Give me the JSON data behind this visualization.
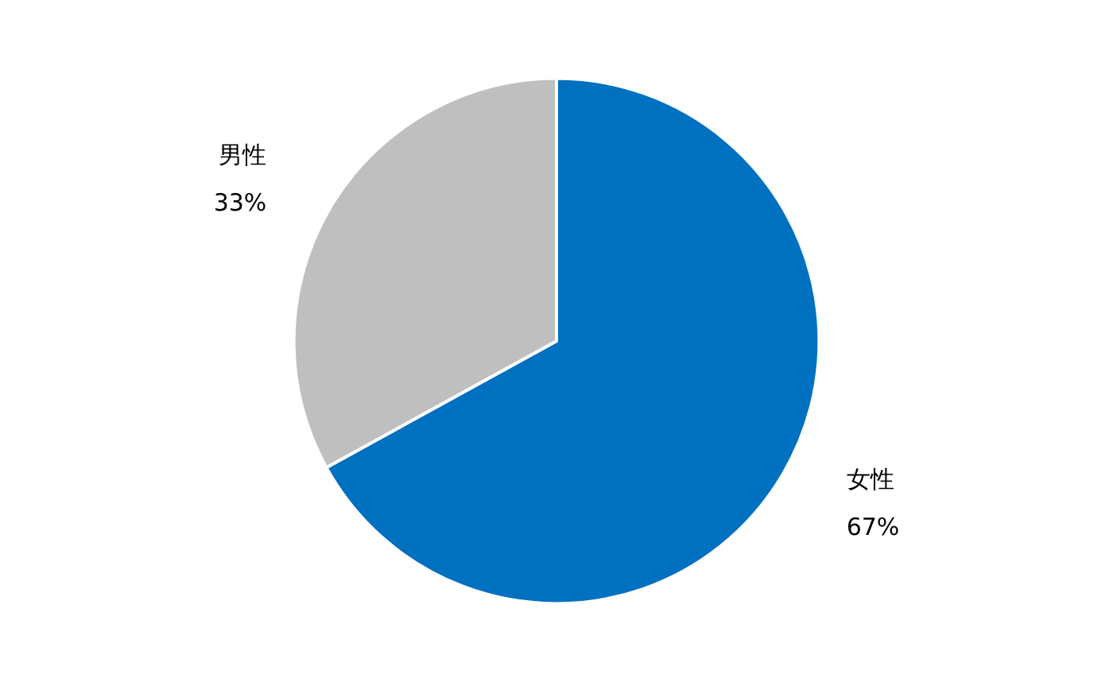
{
  "chart_data": {
    "type": "pie",
    "categories": [
      "女性",
      "男性"
    ],
    "values": [
      67,
      33
    ],
    "colors": [
      "#0070c0",
      "#bfbfbf"
    ],
    "value_labels": [
      "67%",
      "33%"
    ],
    "legend": false
  }
}
